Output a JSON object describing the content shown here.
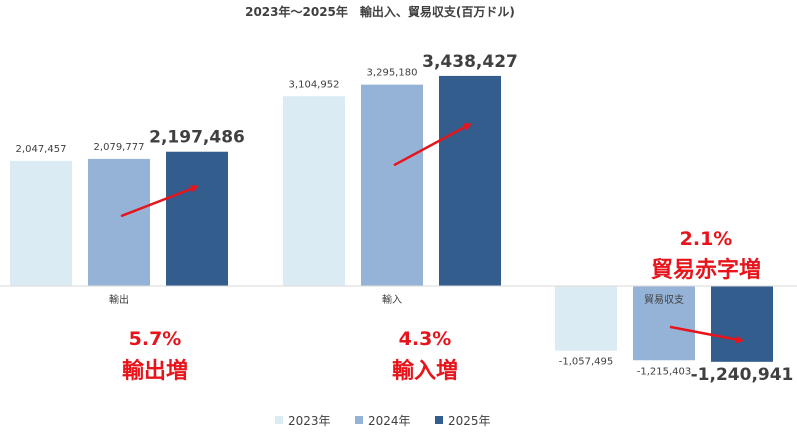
{
  "chart_data": {
    "type": "bar",
    "title": "2023年～2025年　輸出入、貿易収支(百万ドル)",
    "categories": [
      "輸出",
      "輸入",
      "貿易収支"
    ],
    "series": [
      {
        "name": "2023年",
        "color": "#daebf3",
        "values": [
          2047457,
          3104952,
          -1057495
        ],
        "labels": [
          "2,047,457",
          "3,104,952",
          "-1,057,495"
        ]
      },
      {
        "name": "2024年",
        "color": "#95b3d7",
        "values": [
          2079777,
          3295180,
          -1215403
        ],
        "labels": [
          "2,079,777",
          "3,295,180",
          "-1,215,403"
        ]
      },
      {
        "name": "2025年",
        "color": "#335d8d",
        "values": [
          2197486,
          3438427,
          -1240941
        ],
        "labels": [
          "2,197,486",
          "3,438,427",
          "-1,240,941"
        ]
      }
    ],
    "legend_position": "bottom",
    "annotations": [
      {
        "category": "輸出",
        "pct": "5.7%",
        "text": "輸出増"
      },
      {
        "category": "輸入",
        "pct": "4.3%",
        "text": "輸入増"
      },
      {
        "category": "貿易収支",
        "pct": "2.1%",
        "text": "貿易赤字増"
      }
    ],
    "annotation_color": "#e8141b",
    "axis_line_color": "#d9d9d9"
  }
}
